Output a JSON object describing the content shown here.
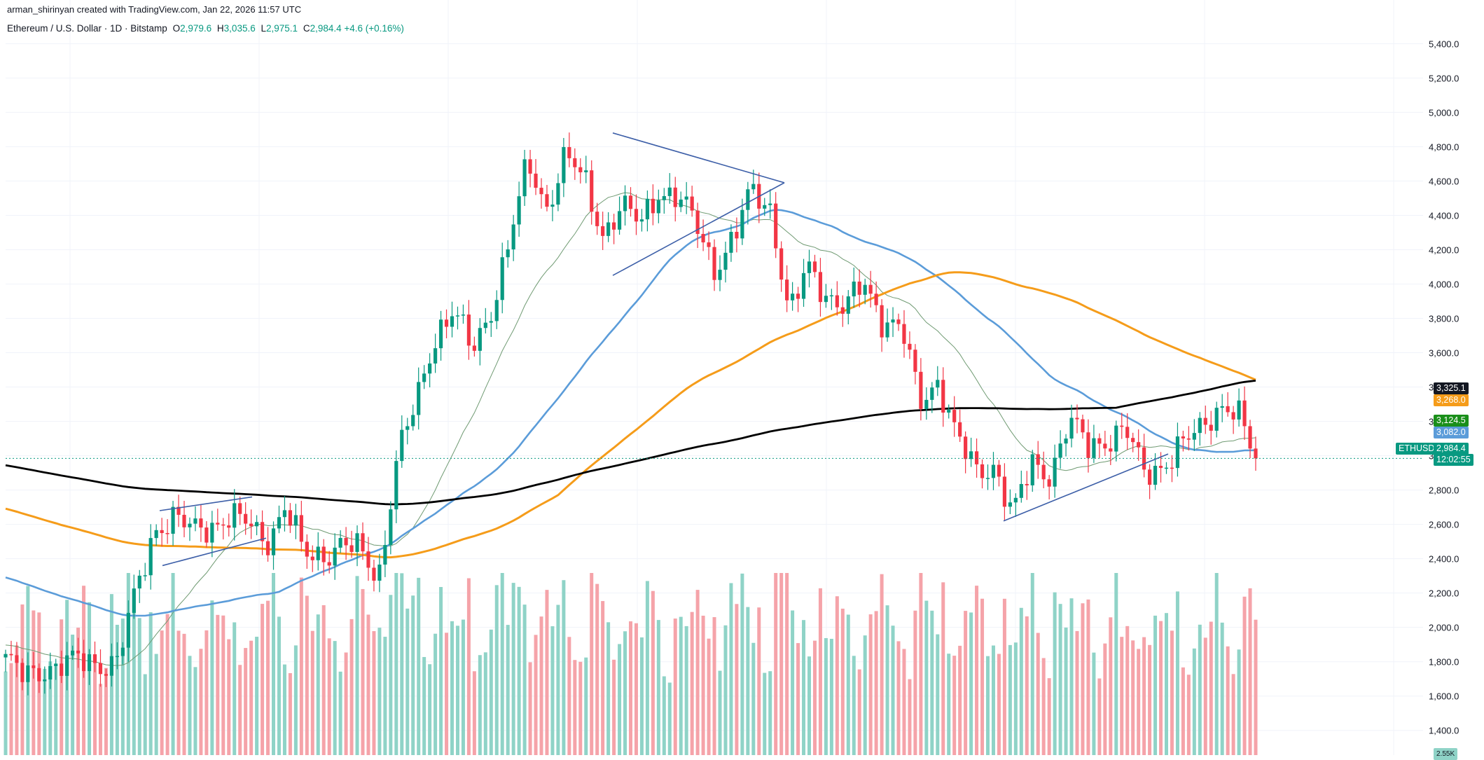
{
  "header": {
    "attribution": "arman_shirinyan created with TradingView.com, Jan 22, 2026 11:57 UTC",
    "symbol": "Ethereum / U.S. Dollar · 1D · Bitstamp",
    "open_label": "O",
    "open": "2,979.6",
    "high_label": "H",
    "high": "3,035.6",
    "low_label": "L",
    "low": "2,975.1",
    "close_label": "C",
    "close": "2,984.4",
    "change": "+4.6 (+0.16%)"
  },
  "colors": {
    "up": "#089981",
    "down": "#f23645",
    "vol_up": "#8fd3c7",
    "vol_down": "#f5a3a9",
    "ma200": "#000000",
    "ma100": "#f59c1a",
    "ma50": "#5b9cd9",
    "ma20": "#6f9a72",
    "trendline": "#3d5fa8",
    "grid": "#f0f3fa"
  },
  "labels": {
    "ma200_value": "3,325.1",
    "ma100_value": "3,268.0",
    "ma20_value": "3,124.5",
    "ma50_value": "3,082.0",
    "symbol_tag": "ETHUSD",
    "last_price": "2,984.4",
    "countdown": "12:02:55",
    "volume_tag": "2.55K"
  },
  "chart_data": {
    "type": "candlestick",
    "title": "Ethereum / U.S. Dollar · 1D · Bitstamp",
    "y_axis_ticks": [
      "5,400.0",
      "5,200.0",
      "5,000.0",
      "4,800.0",
      "4,600.0",
      "4,400.0",
      "4,200.0",
      "4,000.0",
      "3,800.0",
      "3,600.0",
      "3,400.0",
      "3,200.0",
      "3,000.0",
      "2,800.0",
      "2,600.0",
      "2,400.0",
      "2,200.0",
      "2,000.0",
      "1,800.0",
      "1,600.0",
      "1,400.0"
    ],
    "ylim": [
      1350,
      5450
    ],
    "ohlc_open": 2979.6,
    "ohlc_high": 3035.6,
    "ohlc_low": 2975.1,
    "ohlc_close": 2984.4,
    "last_price": 2984.4,
    "moving_averages": [
      {
        "name": "MA 200",
        "color": "#000000",
        "last": 3325.1
      },
      {
        "name": "MA 100",
        "color": "#f59c1a",
        "last": 3268.0
      },
      {
        "name": "MA 20",
        "color": "#6f9a72",
        "last": 3124.5
      },
      {
        "name": "MA 50",
        "color": "#5b9cd9",
        "last": 3082.0
      }
    ],
    "close_path": [
      1820,
      1700,
      1760,
      1790,
      1800,
      1790,
      1810,
      2200,
      2580,
      2640,
      2560,
      2600,
      2640,
      2600,
      2510,
      2700,
      2420,
      2430,
      2480,
      2440,
      2300,
      3000,
      3300,
      3700,
      3850,
      3600,
      3850,
      4250,
      4700,
      4450,
      4750,
      4600,
      4300,
      4450,
      4350,
      4550,
      4500,
      4350,
      4100,
      4250,
      4550,
      4450,
      3800,
      4100,
      3950,
      3850,
      4000,
      3800,
      3750,
      3300,
      3450,
      3100,
      2900,
      2950,
      2650,
      2950,
      2900,
      3200,
      3050,
      3100,
      3150,
      2900,
      2950,
      3050,
      3150,
      3300,
      3250,
      2950
    ],
    "volume_range": [
      0,
      2600
    ],
    "volume_last": "2.55K",
    "trendlines": [
      {
        "name": "triangle-upper",
        "from": 4880,
        "to": 4590
      },
      {
        "name": "triangle-lower",
        "from": 4050,
        "to": 4590
      },
      {
        "name": "july-channel-upper",
        "from": 2680,
        "to": 2760
      },
      {
        "name": "july-channel-lower",
        "from": 2360,
        "to": 2520
      },
      {
        "name": "rising-support",
        "from": 2620,
        "to": 3010
      }
    ]
  }
}
